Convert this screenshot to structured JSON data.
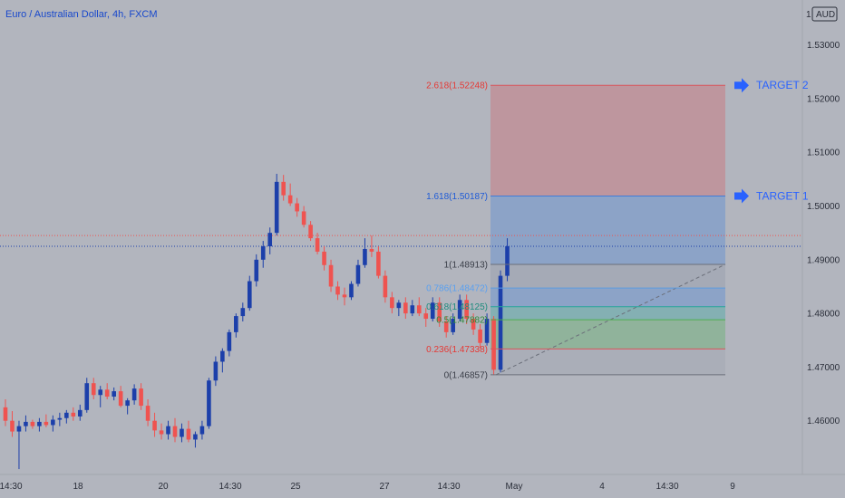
{
  "header": {
    "title": "Euro / Australian Dollar, 4h, FXCM",
    "scale_mode": "1",
    "currency": "AUD"
  },
  "colors": {
    "background": "#b2b5be",
    "up": "#1c3faa",
    "down": "#ef5350",
    "fib_red": "#d9545a",
    "fib_blue": "#3f7bd9",
    "target": "#2962ff"
  },
  "chart_data": {
    "type": "candlestick",
    "title": "Euro / Australian Dollar, 4h, FXCM",
    "y_axis": {
      "range": [
        1.45,
        1.535
      ],
      "ticks": [
        "1.53000",
        "1.52000",
        "1.51000",
        "1.50000",
        "1.49000",
        "1.48000",
        "1.47000",
        "1.46000"
      ],
      "currency": "AUD"
    },
    "x_axis": {
      "ticks": [
        "14:30",
        "18",
        "20",
        "14:30",
        "25",
        "27",
        "14:30",
        "May",
        "4",
        "14:30",
        "9"
      ]
    },
    "candles": [
      [
        1.4625,
        1.464,
        1.459,
        1.46
      ],
      [
        1.46,
        1.4618,
        1.457,
        1.458
      ],
      [
        1.458,
        1.46,
        1.451,
        1.459
      ],
      [
        1.459,
        1.461,
        1.458,
        1.4598
      ],
      [
        1.4598,
        1.4602,
        1.4585,
        1.459
      ],
      [
        1.459,
        1.4605,
        1.458,
        1.4598
      ],
      [
        1.4598,
        1.4612,
        1.4588,
        1.4592
      ],
      [
        1.4592,
        1.461,
        1.458,
        1.4602
      ],
      [
        1.4602,
        1.4615,
        1.459,
        1.4605
      ],
      [
        1.4605,
        1.462,
        1.4595,
        1.4615
      ],
      [
        1.4615,
        1.4625,
        1.46,
        1.4608
      ],
      [
        1.4608,
        1.463,
        1.46,
        1.462
      ],
      [
        1.462,
        1.468,
        1.4615,
        1.467
      ],
      [
        1.467,
        1.468,
        1.464,
        1.4648
      ],
      [
        1.4648,
        1.4665,
        1.4625,
        1.4658
      ],
      [
        1.4658,
        1.467,
        1.464,
        1.4645
      ],
      [
        1.4645,
        1.4662,
        1.4638,
        1.4655
      ],
      [
        1.4655,
        1.4665,
        1.4625,
        1.4628
      ],
      [
        1.4628,
        1.4642,
        1.4612,
        1.4638
      ],
      [
        1.4638,
        1.4668,
        1.463,
        1.466
      ],
      [
        1.466,
        1.467,
        1.462,
        1.4628
      ],
      [
        1.4628,
        1.464,
        1.459,
        1.46
      ],
      [
        1.46,
        1.4615,
        1.457,
        1.4582
      ],
      [
        1.4582,
        1.4595,
        1.4565,
        1.4575
      ],
      [
        1.4575,
        1.46,
        1.4565,
        1.459
      ],
      [
        1.459,
        1.4605,
        1.456,
        1.457
      ],
      [
        1.457,
        1.4595,
        1.456,
        1.4585
      ],
      [
        1.4585,
        1.46,
        1.456,
        1.4565
      ],
      [
        1.4565,
        1.458,
        1.455,
        1.4575
      ],
      [
        1.4575,
        1.46,
        1.4565,
        1.459
      ],
      [
        1.459,
        1.468,
        1.4585,
        1.4675
      ],
      [
        1.4675,
        1.472,
        1.4665,
        1.471
      ],
      [
        1.471,
        1.4735,
        1.469,
        1.473
      ],
      [
        1.473,
        1.477,
        1.472,
        1.4765
      ],
      [
        1.4765,
        1.48,
        1.4755,
        1.4795
      ],
      [
        1.4795,
        1.482,
        1.4785,
        1.481
      ],
      [
        1.481,
        1.487,
        1.4805,
        1.486
      ],
      [
        1.486,
        1.491,
        1.485,
        1.49
      ],
      [
        1.49,
        1.4935,
        1.4885,
        1.4925
      ],
      [
        1.4925,
        1.496,
        1.491,
        1.495
      ],
      [
        1.495,
        1.506,
        1.4945,
        1.5045
      ],
      [
        1.5045,
        1.5058,
        1.501,
        1.502
      ],
      [
        1.502,
        1.5042,
        1.5,
        1.5005
      ],
      [
        1.5005,
        1.5015,
        1.498,
        1.499
      ],
      [
        1.499,
        1.5,
        1.496,
        1.4965
      ],
      [
        1.4965,
        1.4972,
        1.4935,
        1.494
      ],
      [
        1.494,
        1.495,
        1.491,
        1.4915
      ],
      [
        1.4915,
        1.4925,
        1.488,
        1.489
      ],
      [
        1.489,
        1.49,
        1.484,
        1.485
      ],
      [
        1.485,
        1.486,
        1.4825,
        1.4835
      ],
      [
        1.4835,
        1.4848,
        1.4815,
        1.483
      ],
      [
        1.483,
        1.486,
        1.4825,
        1.4855
      ],
      [
        1.4855,
        1.49,
        1.485,
        1.489
      ],
      [
        1.489,
        1.494,
        1.4885,
        1.492
      ],
      [
        1.492,
        1.4945,
        1.4905,
        1.4915
      ],
      [
        1.4915,
        1.4925,
        1.4865,
        1.487
      ],
      [
        1.487,
        1.488,
        1.482,
        1.483
      ],
      [
        1.483,
        1.484,
        1.48,
        1.481
      ],
      [
        1.481,
        1.4825,
        1.4795,
        1.482
      ],
      [
        1.482,
        1.483,
        1.479,
        1.48
      ],
      [
        1.48,
        1.4825,
        1.4795,
        1.4815
      ],
      [
        1.4815,
        1.483,
        1.4795,
        1.48
      ],
      [
        1.48,
        1.481,
        1.4775,
        1.479
      ],
      [
        1.479,
        1.483,
        1.4785,
        1.482
      ],
      [
        1.482,
        1.483,
        1.4775,
        1.4785
      ],
      [
        1.4785,
        1.4795,
        1.4755,
        1.4765
      ],
      [
        1.4765,
        1.48,
        1.476,
        1.479
      ],
      [
        1.479,
        1.4835,
        1.4785,
        1.4825
      ],
      [
        1.4825,
        1.4835,
        1.478,
        1.479
      ],
      [
        1.479,
        1.48,
        1.476,
        1.477
      ],
      [
        1.477,
        1.478,
        1.4735,
        1.4745
      ],
      [
        1.4745,
        1.48,
        1.474,
        1.479
      ],
      [
        1.479,
        1.4795,
        1.4685,
        1.4695
      ],
      [
        1.4695,
        1.488,
        1.469,
        1.487
      ],
      [
        1.487,
        1.494,
        1.486,
        1.4925
      ]
    ],
    "fib_levels": [
      {
        "ratio": "2.618",
        "price": 1.52248,
        "label": "2.618(1.52248)"
      },
      {
        "ratio": "1.618",
        "price": 1.50187,
        "label": "1.618(1.50187)"
      },
      {
        "ratio": "1",
        "price": 1.48913,
        "label": "1(1.48913)"
      },
      {
        "ratio": "0.786",
        "price": 1.48472,
        "label": "0.786(1.48472)"
      },
      {
        "ratio": "0.618",
        "price": 1.48125,
        "label": "0.618(1.48125)"
      },
      {
        "ratio": "0.5",
        "price": 1.47882,
        "label": "0.5(1.47882)"
      },
      {
        "ratio": "0.236",
        "price": 1.47338,
        "label": "0.236(1.47338)"
      },
      {
        "ratio": "0",
        "price": 1.46857,
        "label": "0(1.46857)"
      }
    ],
    "targets": [
      {
        "label": "TARGET 2",
        "price": 1.52248
      },
      {
        "label": "TARGET 1",
        "price": 1.50187
      }
    ],
    "price_lines": [
      1.4945,
      1.4925
    ]
  }
}
